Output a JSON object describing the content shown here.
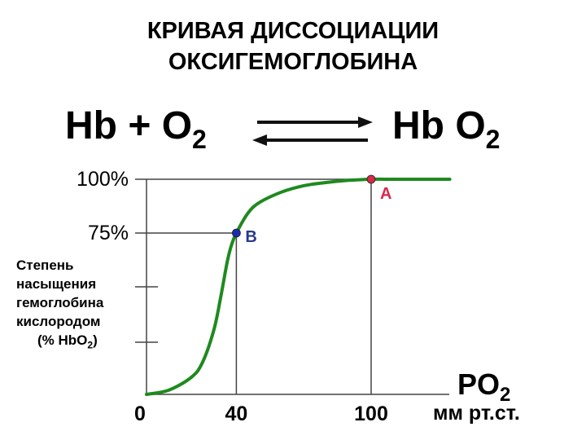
{
  "title": {
    "line1": "КРИВАЯ ДИССОЦИАЦИИ",
    "line2": "ОКСИГЕМОГЛОБИНА"
  },
  "equation": {
    "left": "Hb + O",
    "left_sub": "2",
    "right": "Hb O",
    "right_sub": "2"
  },
  "chart_data": {
    "type": "line",
    "title": "КРИВАЯ ДИССОЦИАЦИИ ОКСИГЕМОГЛОБИНА",
    "xlabel": "PO2",
    "xlabel_main": "PO",
    "xlabel_sub": "2",
    "x_unit": "мм рт.ст.",
    "ylabel_lines": [
      "Степень",
      "насыщения",
      "гемоглобина",
      "кислородом",
      "(% HbO"
    ],
    "ylabel_sub": "2",
    "ylabel_close": ")",
    "y_ticks": [
      {
        "label": "100%",
        "value": 100
      },
      {
        "label": "75%",
        "value": 75
      }
    ],
    "x_ticks": [
      {
        "label": "0",
        "value": 0
      },
      {
        "label": "40",
        "value": 40
      },
      {
        "label": "100",
        "value": 100
      }
    ],
    "xlim": [
      0,
      140
    ],
    "ylim": [
      0,
      100
    ],
    "grid": false,
    "series": [
      {
        "color": "#1e8a1e",
        "x": [
          0,
          10,
          20,
          25,
          30,
          33,
          36,
          38,
          40,
          45,
          50,
          60,
          70,
          80,
          90,
          100,
          110,
          120,
          135
        ],
        "y": [
          0,
          2,
          8,
          15,
          30,
          45,
          62,
          70,
          75,
          84,
          89,
          94,
          97,
          98.5,
          99.5,
          100,
          100,
          100,
          100
        ]
      }
    ],
    "points": [
      {
        "label": "A",
        "x": 100,
        "y": 100,
        "color": "#d8284b",
        "label_color": "#d8284b"
      },
      {
        "label": "B",
        "x": 40,
        "y": 75,
        "color": "#1c2bb0",
        "label_color": "#2a3a8c"
      }
    ]
  },
  "colors": {
    "curve": "#1e8a1e",
    "axis": "#444444",
    "arrows": "#111111"
  }
}
